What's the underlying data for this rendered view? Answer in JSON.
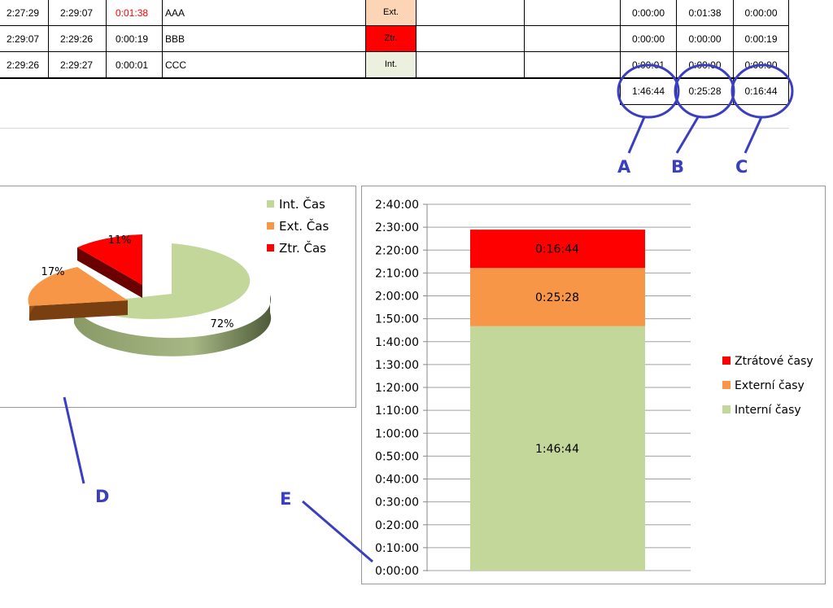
{
  "colors": {
    "internal": "#c4d79b",
    "external": "#f79646",
    "lost": "#ff0000",
    "annotation": "#3a3fbf",
    "late_text": "#ff0000",
    "tag_ext_bg": "#fbd5b5",
    "tag_ztr_bg": "#ff0000",
    "tag_int_bg": "#ebf1de"
  },
  "table": {
    "rows": [
      {
        "start": "2:27:29",
        "end": "2:29:07",
        "duration": "0:01:38",
        "name": "AAA",
        "type": "Ext.",
        "int": "0:00:00",
        "ext": "0:01:38",
        "ztr": "0:00:00"
      },
      {
        "start": "2:29:07",
        "end": "2:29:26",
        "duration": "0:00:19",
        "name": "BBB",
        "type": "Ztr.",
        "int": "0:00:00",
        "ext": "0:00:00",
        "ztr": "0:00:19"
      },
      {
        "start": "2:29:26",
        "end": "2:29:27",
        "duration": "0:00:01",
        "name": "CCC",
        "type": "Int.",
        "int": "0:00:01",
        "ext": "0:00:00",
        "ztr": "0:00:00"
      }
    ],
    "totals": {
      "int": "1:46:44",
      "ext": "0:25:28",
      "ztr": "0:16:44"
    }
  },
  "annotations": {
    "a": "A",
    "b": "B",
    "c": "C",
    "d": "D",
    "e": "E"
  },
  "chart_data": [
    {
      "type": "pie",
      "style": "3d-exploded",
      "legend_position": "top-right",
      "categories": [
        "Int. Čas",
        "Ext. Čas",
        "Ztr. Čas"
      ],
      "values": [
        72,
        17,
        11
      ],
      "labels": [
        "72%",
        "17%",
        "11%"
      ]
    },
    {
      "type": "bar",
      "stacked": true,
      "legend_position": "right",
      "categories": [
        ""
      ],
      "ylim": [
        "0:00:00",
        "2:40:00"
      ],
      "y_ticks": [
        "0:00:00",
        "0:10:00",
        "0:20:00",
        "0:30:00",
        "0:40:00",
        "0:50:00",
        "1:00:00",
        "1:10:00",
        "1:20:00",
        "1:30:00",
        "1:40:00",
        "1:50:00",
        "2:00:00",
        "2:10:00",
        "2:20:00",
        "2:30:00",
        "2:40:00"
      ],
      "grid": true,
      "series": [
        {
          "name": "Interní časy",
          "values": [
            "1:46:44"
          ],
          "label": "1:46:44"
        },
        {
          "name": "Externí časy",
          "values": [
            "0:25:28"
          ],
          "label": "0:25:28"
        },
        {
          "name": "Ztrátové časy",
          "values": [
            "0:16:44"
          ],
          "label": "0:16:44"
        }
      ]
    }
  ]
}
